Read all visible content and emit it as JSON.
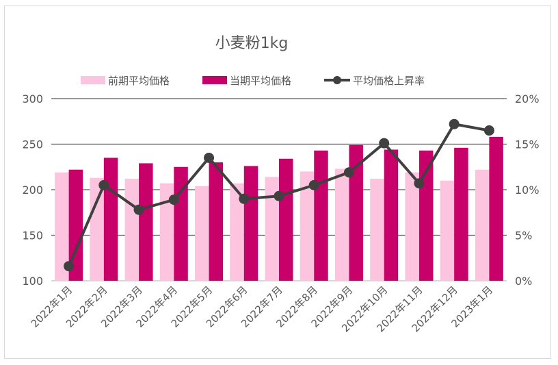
{
  "chart_data": {
    "type": "bar",
    "title": "小麦粉1kg",
    "categories": [
      "2022年1月",
      "2022年2月",
      "2022年3月",
      "2022年4月",
      "2022年5月",
      "2022年6月",
      "2022年7月",
      "2022年8月",
      "2022年9月",
      "2022年10月",
      "2022年11月",
      "2022年12月",
      "2023年1月"
    ],
    "series": [
      {
        "name": "前期平均価格",
        "type": "bar",
        "axis": "left",
        "color": "#fcc4de",
        "values": [
          219,
          213,
          212,
          207,
          204,
          207,
          214,
          220,
          223,
          212,
          219,
          210,
          222
        ]
      },
      {
        "name": "当期平均価格",
        "type": "bar",
        "axis": "left",
        "color": "#c8006a",
        "values": [
          222,
          235,
          229,
          225,
          230,
          226,
          234,
          243,
          249,
          244,
          243,
          246,
          258
        ]
      },
      {
        "name": "平均価格上昇率",
        "type": "line",
        "axis": "right",
        "color": "#404040",
        "values": [
          1.6,
          10.5,
          7.8,
          8.9,
          13.5,
          9.0,
          9.3,
          10.5,
          11.9,
          15.1,
          10.7,
          17.2,
          16.5
        ]
      }
    ],
    "ylim": [
      100,
      300
    ],
    "yticks": [
      "100",
      "150",
      "200",
      "250",
      "300"
    ],
    "y2lim": [
      0,
      20
    ],
    "y2ticks": [
      "0%",
      "5%",
      "10%",
      "15%",
      "20%"
    ],
    "legend": "top",
    "grid": true
  }
}
